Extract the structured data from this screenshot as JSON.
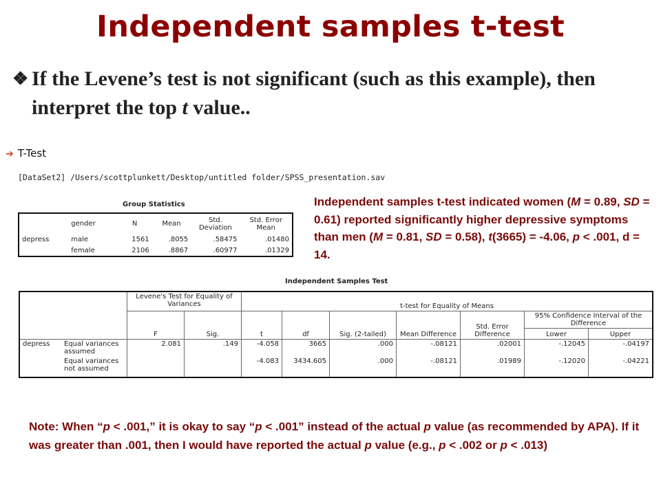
{
  "title": "Independent samples t-test",
  "bullet": {
    "icon": "four-diamond-bullet",
    "text_before": "If the Levene’s test is not significant (such as this example), then interpret the top ",
    "t_italic": "t",
    "text_after": " value.."
  },
  "output": {
    "heading": "T-Test",
    "dataset_line": "[DataSet2] /Users/scottplunkett/Desktop/untitled folder/SPSS_presentation.sav"
  },
  "group_statistics": {
    "caption": "Group Statistics",
    "headers": [
      "gender",
      "N",
      "Mean",
      "Std. Deviation",
      "Std. Error Mean"
    ],
    "variable": "depress",
    "rows": [
      {
        "gender": "male",
        "n": "1561",
        "mean": ".8055",
        "sd": ".58475",
        "se": ".01480"
      },
      {
        "gender": "female",
        "n": "2106",
        "mean": ".8867",
        "sd": ".60977",
        "se": ".01329"
      }
    ]
  },
  "independent_samples": {
    "caption": "Independent Samples Test",
    "levene_header": "Levene's Test for Equality of Variances",
    "ttest_header": "t-test for Equality of Means",
    "ci_header": "95% Confidence Interval of the Difference",
    "col_F": "F",
    "col_sig": "Sig.",
    "col_t": "t",
    "col_df": "df",
    "col_sig2": "Sig. (2-tailed)",
    "col_meandiff": "Mean Difference",
    "col_sediff": "Std. Error Difference",
    "col_lower": "Lower",
    "col_upper": "Upper",
    "variable": "depress",
    "rows": [
      {
        "label": "Equal variances assumed",
        "F": "2.081",
        "sig": ".149",
        "t": "-4.058",
        "df": "3665",
        "sig2": ".000",
        "md": "-.08121",
        "se": ".02001",
        "lower": "-.12045",
        "upper": "-.04197"
      },
      {
        "label": "Equal variances not assumed",
        "F": "",
        "sig": "",
        "t": "-4.083",
        "df": "3434.605",
        "sig2": ".000",
        "md": "-.08121",
        "se": ".01989",
        "lower": "-.12020",
        "upper": "-.04221"
      }
    ]
  },
  "result": {
    "p1": "Independent samples t-test indicated women (",
    "M": "M",
    "p2": " = 0.89, ",
    "SD": "SD",
    "p3": " = 0.61) reported significantly higher depressive symptoms than men (",
    "M2": "M",
    "p4": " = 0.81, ",
    "SD2": "SD",
    "p5": " = 0.58), ",
    "t": "t",
    "p6": "(3665) = -4.06, ",
    "p": "p",
    "p7": " < .001, d = 14."
  },
  "note": {
    "n1": "Note: When “",
    "p_a": "p",
    "n2": " < .001,” it is okay to say “",
    "p_b": "p",
    "n3": " < .001” instead of the actual ",
    "p_c": "p",
    "n4": " value (as recommended by APA). If it was greater than .001, then I would have reported the actual ",
    "p_d": "p",
    "n5": " value (e.g., ",
    "p_e": "p",
    "n6": " < .002 or ",
    "p_f": "p",
    "n7": " < .013)"
  }
}
